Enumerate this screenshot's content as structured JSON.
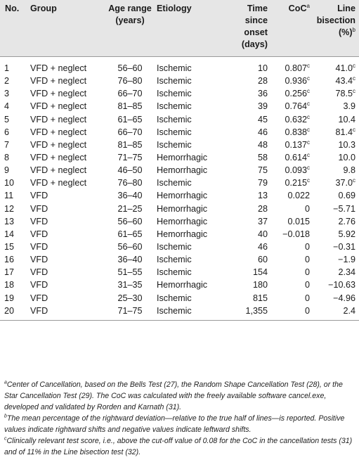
{
  "headers": {
    "no": "No.",
    "group": "Group",
    "age": "Age range (years)",
    "etiology": "Etiology",
    "time": "Time since onset (days)",
    "coc": "CoC",
    "coc_mark": "a",
    "bisection": "Line bisection (%)",
    "bisection_mark": "b"
  },
  "rows": [
    {
      "no": "1",
      "group": "VFD + neglect",
      "age": "56–60",
      "etiology": "Ischemic",
      "time": "10",
      "coc": "0.807",
      "coc_mark": "c",
      "bisection": "41.0",
      "bisection_mark": "c"
    },
    {
      "no": "2",
      "group": "VFD + neglect",
      "age": "76–80",
      "etiology": "Ischemic",
      "time": "28",
      "coc": "0.936",
      "coc_mark": "c",
      "bisection": "43.4",
      "bisection_mark": "c"
    },
    {
      "no": "3",
      "group": "VFD + neglect",
      "age": "66–70",
      "etiology": "Ischemic",
      "time": "36",
      "coc": "0.256",
      "coc_mark": "c",
      "bisection": "78.5",
      "bisection_mark": "c"
    },
    {
      "no": "4",
      "group": "VFD + neglect",
      "age": "81–85",
      "etiology": "Ischemic",
      "time": "39",
      "coc": "0.764",
      "coc_mark": "c",
      "bisection": "3.9",
      "bisection_mark": ""
    },
    {
      "no": "5",
      "group": "VFD + neglect",
      "age": "61–65",
      "etiology": "Ischemic",
      "time": "45",
      "coc": "0.632",
      "coc_mark": "c",
      "bisection": "10.4",
      "bisection_mark": ""
    },
    {
      "no": "6",
      "group": "VFD + neglect",
      "age": "66–70",
      "etiology": "Ischemic",
      "time": "46",
      "coc": "0.838",
      "coc_mark": "c",
      "bisection": "81.4",
      "bisection_mark": "c"
    },
    {
      "no": "7",
      "group": "VFD + neglect",
      "age": "81–85",
      "etiology": "Ischemic",
      "time": "48",
      "coc": "0.137",
      "coc_mark": "c",
      "bisection": "10.3",
      "bisection_mark": ""
    },
    {
      "no": "8",
      "group": "VFD + neglect",
      "age": "71–75",
      "etiology": "Hemorrhagic",
      "time": "58",
      "coc": "0.614",
      "coc_mark": "c",
      "bisection": "10.0",
      "bisection_mark": ""
    },
    {
      "no": "9",
      "group": "VFD + neglect",
      "age": "46–50",
      "etiology": "Hemorrhagic",
      "time": "75",
      "coc": "0.093",
      "coc_mark": "c",
      "bisection": "9.8",
      "bisection_mark": ""
    },
    {
      "no": "10",
      "group": "VFD + neglect",
      "age": "76–80",
      "etiology": "Ischemic",
      "time": "79",
      "coc": "0.215",
      "coc_mark": "c",
      "bisection": "37.0",
      "bisection_mark": "c"
    },
    {
      "no": "11",
      "group": "VFD",
      "age": "36–40",
      "etiology": "Hemorrhagic",
      "time": "13",
      "coc": "0.022",
      "coc_mark": "",
      "bisection": "0.69",
      "bisection_mark": ""
    },
    {
      "no": "12",
      "group": "VFD",
      "age": "21–25",
      "etiology": "Hemorrhagic",
      "time": "28",
      "coc": "0",
      "coc_mark": "",
      "bisection": "−5.71",
      "bisection_mark": ""
    },
    {
      "no": "13",
      "group": "VFD",
      "age": "56–60",
      "etiology": "Hemorrhagic",
      "time": "37",
      "coc": "0.015",
      "coc_mark": "",
      "bisection": "2.76",
      "bisection_mark": ""
    },
    {
      "no": "14",
      "group": "VFD",
      "age": "61–65",
      "etiology": "Hemorrhagic",
      "time": "40",
      "coc": "−0.018",
      "coc_mark": "",
      "bisection": "5.92",
      "bisection_mark": ""
    },
    {
      "no": "15",
      "group": "VFD",
      "age": "56–60",
      "etiology": "Ischemic",
      "time": "46",
      "coc": "0",
      "coc_mark": "",
      "bisection": "−0.31",
      "bisection_mark": ""
    },
    {
      "no": "16",
      "group": "VFD",
      "age": "36–40",
      "etiology": "Ischemic",
      "time": "60",
      "coc": "0",
      "coc_mark": "",
      "bisection": "−1.9",
      "bisection_mark": ""
    },
    {
      "no": "17",
      "group": "VFD",
      "age": "51–55",
      "etiology": "Ischemic",
      "time": "154",
      "coc": "0",
      "coc_mark": "",
      "bisection": "2.34",
      "bisection_mark": ""
    },
    {
      "no": "18",
      "group": "VFD",
      "age": "31–35",
      "etiology": "Hemorrhagic",
      "time": "180",
      "coc": "0",
      "coc_mark": "",
      "bisection": "−10.63",
      "bisection_mark": ""
    },
    {
      "no": "19",
      "group": "VFD",
      "age": "25–30",
      "etiology": "Ischemic",
      "time": "815",
      "coc": "0",
      "coc_mark": "",
      "bisection": "−4.96",
      "bisection_mark": ""
    },
    {
      "no": "20",
      "group": "VFD",
      "age": "71–75",
      "etiology": "Ischemic",
      "time": "1,355",
      "coc": "0",
      "coc_mark": "",
      "bisection": "2.4",
      "bisection_mark": ""
    }
  ],
  "footnotes": [
    {
      "mark": "a",
      "text": "Center of Cancellation, based on the Bells Test (27), the Random Shape Cancellation Test (28), or the Star Cancellation Test (29). The CoC was calculated with the freely available software cancel.exe, developed and validated by Rorden and Karnath (31)."
    },
    {
      "mark": "b",
      "text": "The mean percentage of the rightward deviation—relative to the true half of lines—is reported. Positive values indicate rightward shifts and negative values indicate leftward shifts."
    },
    {
      "mark": "c",
      "text": "Clinically relevant test score, i.e., above the cut-off value of 0.08 for the CoC in the cancellation tests (31) and of 11% in the Line bisection test (32)."
    }
  ]
}
